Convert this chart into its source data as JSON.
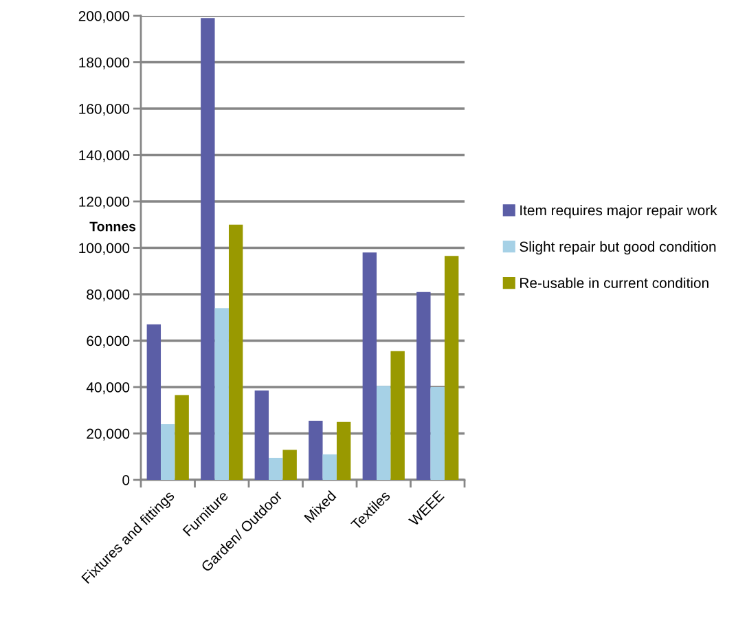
{
  "chart_data": {
    "type": "bar",
    "ylabel": "Tonnes",
    "categories": [
      "Fixtures and fittings",
      "Furniture",
      "Garden/ Outdoor",
      "Mixed",
      "Textiles",
      "WEEE"
    ],
    "series": [
      {
        "name": "Item requires major repair work",
        "color": "#5b5ea6",
        "values": [
          67000,
          199000,
          38500,
          25500,
          98000,
          81000
        ]
      },
      {
        "name": "Slight repair but good condition",
        "color": "#a6d1e6",
        "values": [
          24000,
          74000,
          9500,
          11000,
          40500,
          40000
        ]
      },
      {
        "name": "Re-usable in current condition",
        "color": "#999900",
        "values": [
          36500,
          110000,
          13000,
          25000,
          55500,
          96500
        ]
      }
    ],
    "ylim": [
      0,
      200000
    ],
    "yticks": [
      {
        "value": 0,
        "label": "0"
      },
      {
        "value": 20000,
        "label": "20,000"
      },
      {
        "value": 40000,
        "label": "40,000"
      },
      {
        "value": 60000,
        "label": "60,000"
      },
      {
        "value": 80000,
        "label": "80,000"
      },
      {
        "value": 100000,
        "label": "100,000"
      },
      {
        "value": 120000,
        "label": "120,000"
      },
      {
        "value": 140000,
        "label": "140,000"
      },
      {
        "value": 160000,
        "label": "160,000"
      },
      {
        "value": 180000,
        "label": "180,000"
      },
      {
        "value": 200000,
        "label": "200,000"
      }
    ],
    "grid": "y",
    "legend": "right"
  }
}
